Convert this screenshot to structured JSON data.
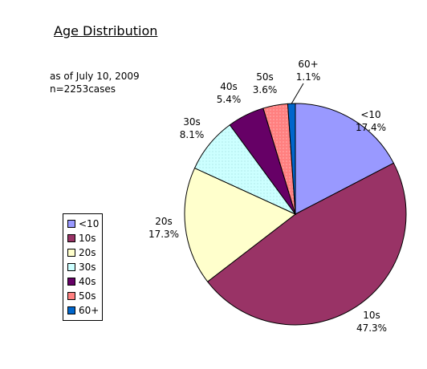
{
  "chart_data": {
    "type": "pie",
    "title": "Age Distribution",
    "notes": [
      "as of July 10, 2009",
      "n=2253cases"
    ],
    "legend_position": "bottom-left",
    "slices": [
      {
        "label": "<10",
        "value": 17.4,
        "value_label": "17.4%",
        "color": "#9999ff"
      },
      {
        "label": "10s",
        "value": 47.3,
        "value_label": "47.3%",
        "color": "#993366"
      },
      {
        "label": "20s",
        "value": 17.3,
        "value_label": "17.3%",
        "color": "#ffffcc"
      },
      {
        "label": "30s",
        "value": 8.1,
        "value_label": "8.1%",
        "color": "#ccffff"
      },
      {
        "label": "40s",
        "value": 5.4,
        "value_label": "5.4%",
        "color": "#660066"
      },
      {
        "label": "50s",
        "value": 3.6,
        "value_label": "3.6%",
        "color": "#ff8080"
      },
      {
        "label": "60+",
        "value": 1.1,
        "value_label": "1.1%",
        "color": "#0066cc"
      }
    ]
  }
}
